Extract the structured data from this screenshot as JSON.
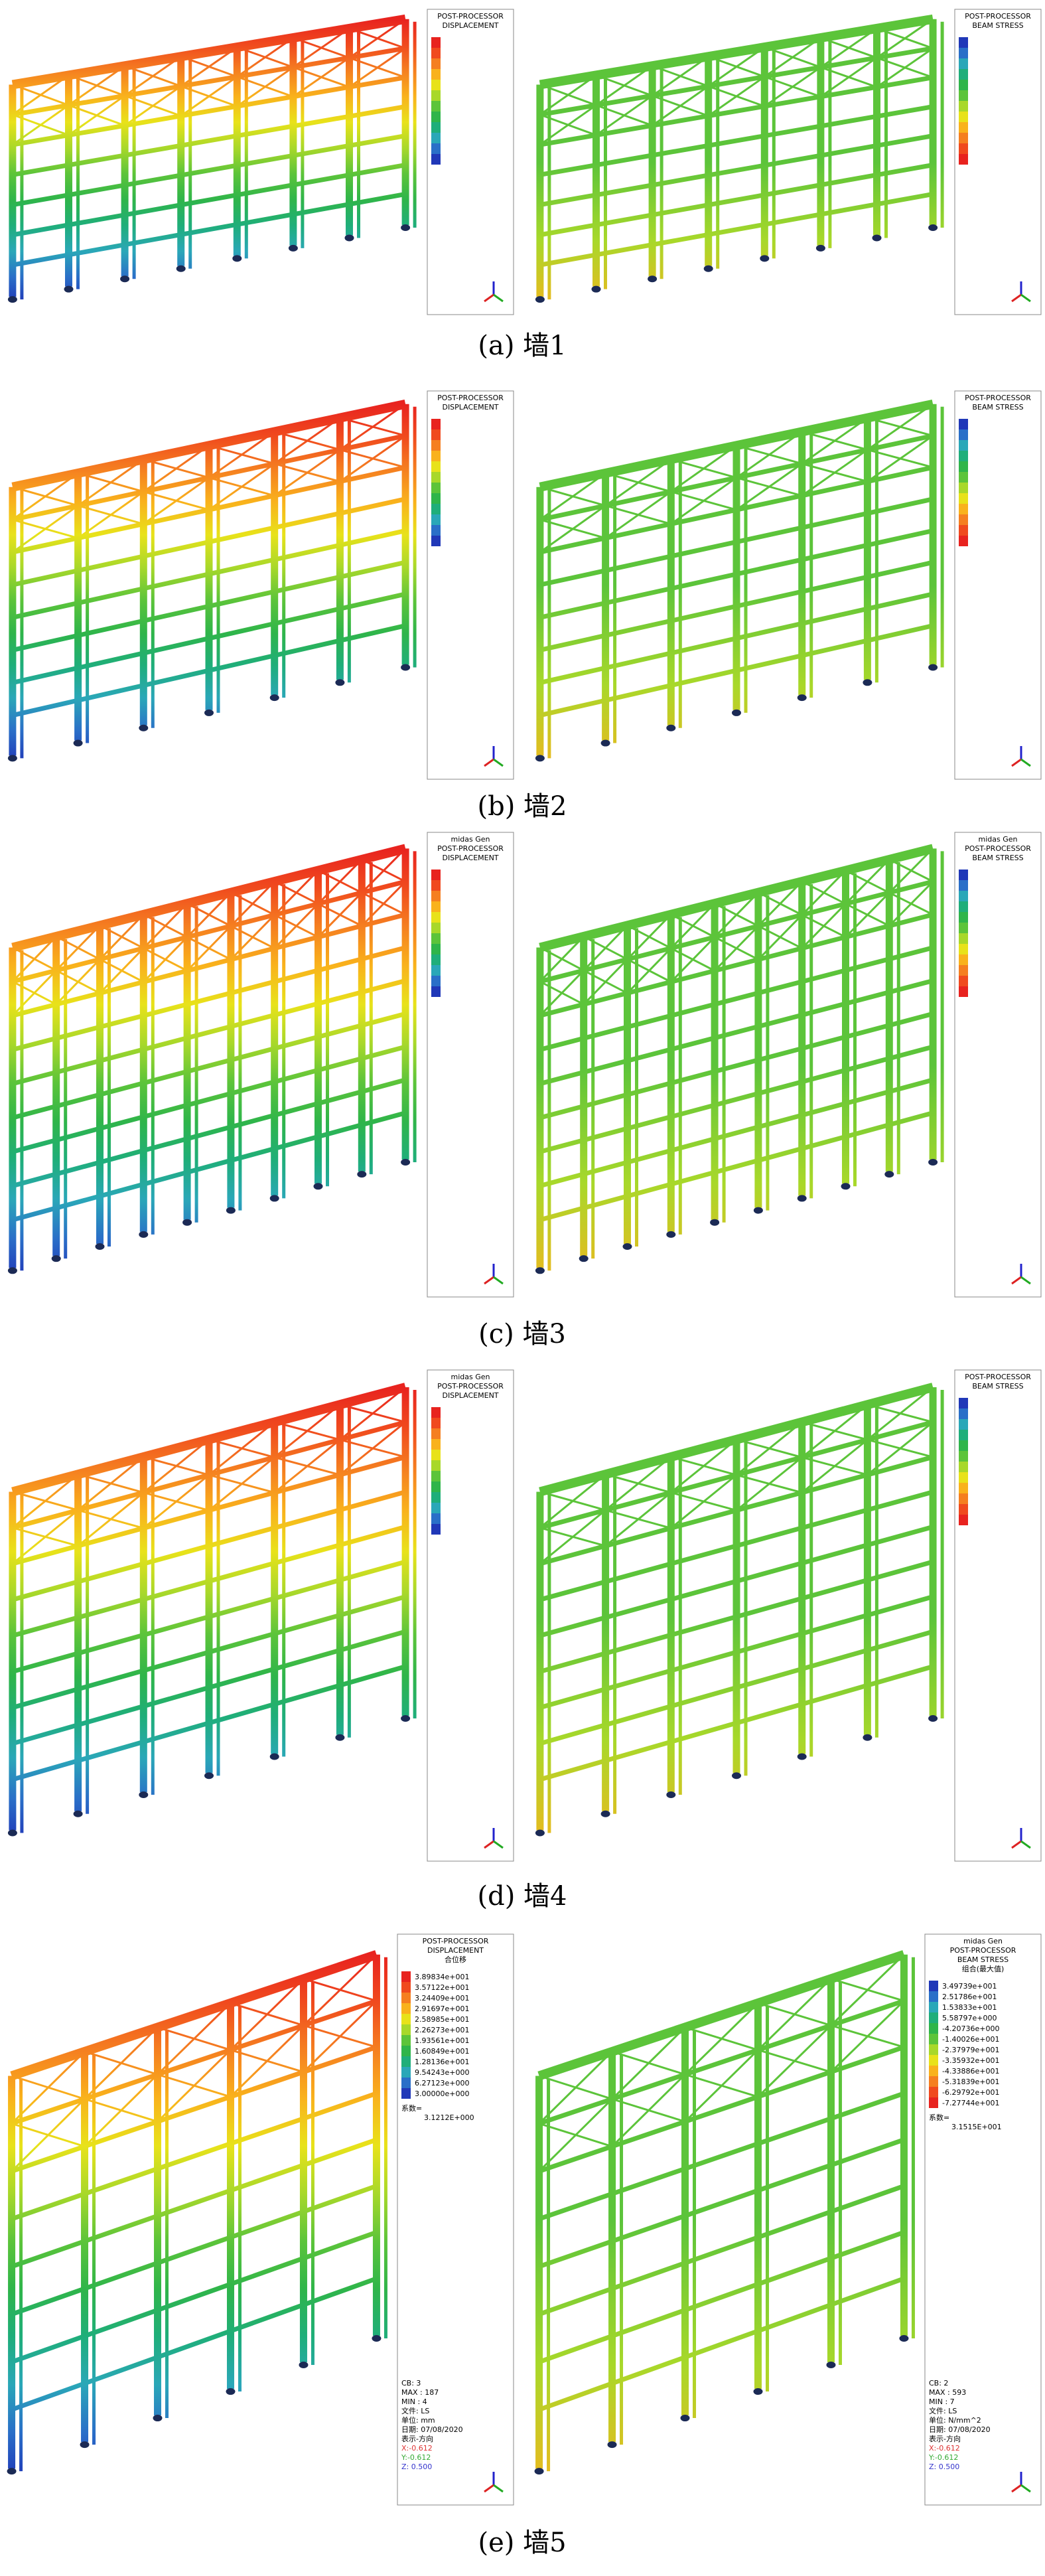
{
  "colors": [
    "#e8231f",
    "#f04a1e",
    "#f57f20",
    "#f9b21c",
    "#e8e21a",
    "#a8d82a",
    "#5cc43a",
    "#2fb54a",
    "#1fae7a",
    "#2aa7b8",
    "#2a6fc8",
    "#2038b8"
  ],
  "panels": [
    {
      "caption": "(a) 墙1",
      "left": {
        "header": [
          "POST-PROCESSOR",
          "DISPLACEMENT"
        ],
        "reverse_colors": false
      },
      "right": {
        "header": [
          "POST-PROCESSOR",
          "BEAM STRESS"
        ],
        "reverse_colors": true
      }
    },
    {
      "caption": "(b) 墙2",
      "left": {
        "header": [
          "POST-PROCESSOR",
          "DISPLACEMENT"
        ],
        "reverse_colors": false
      },
      "right": {
        "header": [
          "POST-PROCESSOR",
          "BEAM STRESS"
        ],
        "reverse_colors": true
      }
    },
    {
      "caption": "(c) 墙3",
      "left": {
        "header": [
          "midas Gen",
          "POST-PROCESSOR",
          "DISPLACEMENT"
        ],
        "reverse_colors": false
      },
      "right": {
        "header": [
          "midas Gen",
          "POST-PROCESSOR",
          "BEAM STRESS"
        ],
        "reverse_colors": true
      }
    },
    {
      "caption": "(d) 墙4",
      "left": {
        "header": [
          "midas Gen",
          "POST-PROCESSOR",
          "DISPLACEMENT"
        ],
        "reverse_colors": false
      },
      "right": {
        "header": [
          "POST-PROCESSOR",
          "BEAM STRESS"
        ],
        "reverse_colors": true
      }
    },
    {
      "caption": "(e) 墙5",
      "left": {
        "header": [
          "POST-PROCESSOR",
          "DISPLACEMENT",
          "合位移"
        ],
        "reverse_colors": false,
        "values": [
          "3.89834e+001",
          "3.57122e+001",
          "3.24409e+001",
          "2.91697e+001",
          "2.58985e+001",
          "2.26273e+001",
          "1.93561e+001",
          "1.60849e+001",
          "1.28136e+001",
          "9.54243e+000",
          "6.27123e+000",
          "3.00000e+000"
        ],
        "footer": [
          "系数=",
          "3.1212E+000",
          "CB: 3",
          "MAX : 187",
          "MIN : 4",
          "文件: LS",
          "单位: mm",
          "日期: 07/08/2020",
          "表示-方向",
          "X:-0.612",
          "Y:-0.612",
          "Z: 0.500"
        ]
      },
      "right": {
        "header": [
          "midas Gen",
          "POST-PROCESSOR",
          "BEAM STRESS",
          "组合(最大值)"
        ],
        "reverse_colors": true,
        "values": [
          "3.49739e+001",
          "2.51786e+001",
          "1.53833e+001",
          "5.58797e+000",
          "-4.20736e+000",
          "-1.40026e+001",
          "-2.37979e+001",
          "-3.35932e+001",
          "-4.33886e+001",
          "-5.31839e+001",
          "-6.29792e+001",
          "-7.27744e+001"
        ],
        "footer": [
          "系数=",
          "3.1515E+001",
          "CB: 2",
          "MAX : 593",
          "MIN : 7",
          "文件: LS",
          "单位: N/mm^2",
          "日期: 07/08/2020",
          "表示-方向",
          "X:-0.612",
          "Y:-0.612",
          "Z: 0.500"
        ]
      }
    }
  ]
}
